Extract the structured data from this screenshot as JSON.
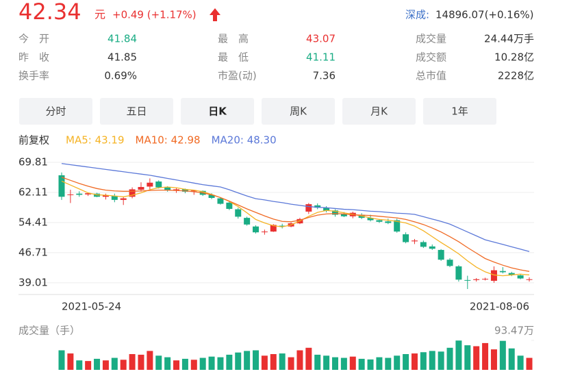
{
  "quote": {
    "price": "42.34",
    "unit": "元",
    "change": "+0.49 (+1.17%)",
    "color": "#e93030"
  },
  "index": {
    "name": "深成:",
    "value": "14896.07(+0.16%)"
  },
  "stats": [
    [
      {
        "label": "今　开",
        "value": "41.84",
        "color": "#1aac84"
      },
      {
        "label": "最　高",
        "value": "43.07",
        "color": "#e93030"
      },
      {
        "label": "成交量",
        "value": "24.44万手",
        "color": "#333333"
      }
    ],
    [
      {
        "label": "昨　收",
        "value": "41.85",
        "color": "#333333"
      },
      {
        "label": "最　低",
        "value": "41.11",
        "color": "#1aac84"
      },
      {
        "label": "成交额",
        "value": "10.28亿",
        "color": "#333333"
      }
    ],
    [
      {
        "label": "换手率",
        "value": "0.69%",
        "color": "#333333"
      },
      {
        "label": "市盈(动)",
        "value": "7.36",
        "color": "#333333"
      },
      {
        "label": "总市值",
        "value": "2228亿",
        "color": "#333333"
      }
    ]
  ],
  "tabs": {
    "items": [
      "分时",
      "五日",
      "日K",
      "周K",
      "月K",
      "1年"
    ],
    "active": 2
  },
  "chart_data": {
    "type": "candlestick",
    "adjust_label": "前复权",
    "categories": [
      "2021-05-24",
      null,
      null,
      null,
      null,
      null,
      null,
      null,
      null,
      null,
      null,
      null,
      null,
      null,
      null,
      null,
      null,
      null,
      null,
      null,
      null,
      null,
      null,
      null,
      null,
      null,
      null,
      null,
      null,
      null,
      null,
      null,
      null,
      null,
      null,
      null,
      null,
      null,
      null,
      null,
      null,
      null,
      null,
      null,
      null,
      null,
      null,
      null,
      null,
      null,
      null,
      null,
      null,
      "2021-08-06"
    ],
    "open": [
      66.5,
      61.5,
      61.8,
      61.6,
      61.8,
      61.0,
      61.2,
      60.2,
      61.0,
      62.8,
      63.6,
      64.9,
      63.4,
      62.6,
      62.9,
      62.4,
      62.5,
      61.5,
      60.6,
      59.5,
      57.8,
      55.6,
      53.4,
      52.0,
      52.1,
      53.6,
      53.4,
      54.2,
      57.2,
      58.8,
      58.2,
      57.5,
      56.6,
      56.0,
      56.4,
      55.6,
      55.0,
      54.7,
      55.0,
      51.4,
      49.6,
      49.4,
      48.3,
      47.4,
      44.9,
      43.2,
      39.7,
      39.7,
      39.9,
      39.5,
      42.0,
      41.5,
      40.9,
      39.8
    ],
    "high": [
      67.2,
      62.8,
      62.4,
      62.1,
      62.0,
      61.8,
      61.8,
      61.0,
      63.4,
      64.7,
      65.7,
      65.2,
      63.7,
      63.3,
      63.1,
      62.8,
      62.6,
      61.9,
      60.9,
      59.8,
      58.2,
      55.9,
      53.7,
      52.6,
      54.0,
      54.1,
      54.4,
      55.6,
      59.4,
      59.3,
      58.6,
      57.8,
      57.1,
      57.2,
      56.8,
      56.4,
      55.3,
      55.4,
      55.4,
      51.9,
      50.2,
      49.8,
      48.8,
      47.6,
      45.3,
      43.5,
      40.8,
      40.2,
      40.3,
      43.2,
      43.0,
      41.8,
      41.2,
      40.4
    ],
    "low": [
      60.2,
      59.4,
      61.0,
      61.2,
      60.9,
      60.3,
      59.6,
      58.9,
      60.6,
      62.3,
      62.6,
      63.1,
      62.3,
      62.0,
      61.9,
      61.5,
      61.2,
      60.4,
      59.0,
      57.6,
      55.4,
      53.6,
      51.6,
      51.3,
      52.0,
      52.9,
      53.2,
      54.0,
      56.6,
      57.8,
      57.0,
      55.9,
      55.8,
      55.5,
      55.3,
      54.7,
      54.3,
      54.0,
      51.8,
      49.1,
      48.9,
      47.9,
      47.4,
      44.6,
      43.0,
      39.3,
      37.4,
      39.3,
      39.6,
      39.0,
      41.4,
      40.7,
      39.9,
      39.3
    ],
    "close": [
      61.0,
      61.6,
      61.5,
      61.9,
      61.0,
      61.4,
      60.2,
      60.6,
      62.9,
      63.5,
      64.6,
      63.4,
      62.6,
      62.9,
      62.3,
      62.6,
      61.5,
      60.7,
      59.2,
      57.9,
      55.9,
      53.9,
      51.9,
      52.1,
      53.8,
      53.4,
      54.2,
      55.3,
      59.1,
      58.2,
      57.4,
      56.4,
      56.0,
      56.9,
      55.6,
      55.0,
      54.6,
      54.3,
      52.1,
      49.4,
      49.8,
      48.2,
      47.7,
      44.9,
      43.3,
      39.8,
      39.6,
      39.9,
      40.0,
      42.2,
      41.7,
      41.0,
      40.1,
      39.9
    ],
    "up_color": "#e93030",
    "down_color": "#1aac84",
    "ylim": [
      36,
      72
    ],
    "yticks": [
      69.81,
      62.11,
      54.41,
      46.71,
      39.01
    ],
    "grid": true,
    "series": [
      {
        "name": "MA5: 43.19",
        "color": "#f5b324",
        "values": [
          65.0,
          64.0,
          63.0,
          62.0,
          61.5,
          61.4,
          61.2,
          61.0,
          61.4,
          62.0,
          62.8,
          63.3,
          63.5,
          63.3,
          62.9,
          62.7,
          62.3,
          61.6,
          60.8,
          59.8,
          58.5,
          56.9,
          55.2,
          54.3,
          53.6,
          53.3,
          53.8,
          54.8,
          56.0,
          57.0,
          57.5,
          57.3,
          56.9,
          56.5,
          56.1,
          55.6,
          55.2,
          55.0,
          54.7,
          54.3,
          53.5,
          52.3,
          50.8,
          49.3,
          47.9,
          46.4,
          44.6,
          43.0,
          41.8,
          41.0,
          40.8,
          41.0,
          41.2,
          41.0
        ]
      },
      {
        "name": "MA10: 42.98",
        "color": "#f06a24",
        "values": [
          66.0,
          65.2,
          64.4,
          63.7,
          63.1,
          62.7,
          62.5,
          62.4,
          62.4,
          62.5,
          62.6,
          62.7,
          62.7,
          62.6,
          62.5,
          62.3,
          62.0,
          61.5,
          60.8,
          59.9,
          58.9,
          57.9,
          57.0,
          56.1,
          55.3,
          54.7,
          54.6,
          55.0,
          55.7,
          56.3,
          56.6,
          56.7,
          56.6,
          56.4,
          56.3,
          56.2,
          56.0,
          55.8,
          55.6,
          55.2,
          54.6,
          53.9,
          53.0,
          52.0,
          50.8,
          49.5,
          48.0,
          46.6,
          45.2,
          44.3,
          43.5,
          42.8,
          42.3,
          41.9
        ]
      },
      {
        "name": "MA20: 48.30",
        "color": "#5b78d8",
        "values": [
          69.5,
          69.2,
          68.9,
          68.6,
          68.3,
          68.0,
          67.7,
          67.4,
          67.1,
          66.8,
          66.5,
          66.1,
          65.7,
          65.3,
          64.9,
          64.5,
          64.1,
          63.8,
          63.5,
          62.8,
          62.0,
          61.2,
          60.5,
          60.2,
          59.8,
          59.5,
          59.1,
          58.8,
          58.5,
          58.3,
          58.2,
          58.0,
          57.8,
          57.7,
          57.5,
          57.3,
          57.2,
          57.0,
          56.8,
          56.7,
          56.5,
          55.9,
          55.3,
          54.7,
          54.0,
          53.0,
          52.0,
          51.0,
          50.0,
          49.4,
          48.8,
          48.2,
          47.6,
          47.0
        ]
      }
    ],
    "volume": {
      "title": "成交量（手）",
      "values": [
        62,
        52,
        30,
        28,
        35,
        30,
        38,
        32,
        50,
        48,
        60,
        45,
        40,
        30,
        35,
        32,
        38,
        42,
        40,
        48,
        55,
        60,
        62,
        45,
        50,
        52,
        40,
        62,
        70,
        48,
        45,
        40,
        38,
        42,
        35,
        33,
        40,
        38,
        45,
        50,
        52,
        56,
        60,
        58,
        70,
        93,
        78,
        75,
        85,
        65,
        92,
        68,
        45,
        38
      ],
      "ylim": [
        0,
        93.47
      ],
      "yticks": [
        {
          "value": 93.47,
          "label": "93.47万"
        }
      ]
    }
  }
}
